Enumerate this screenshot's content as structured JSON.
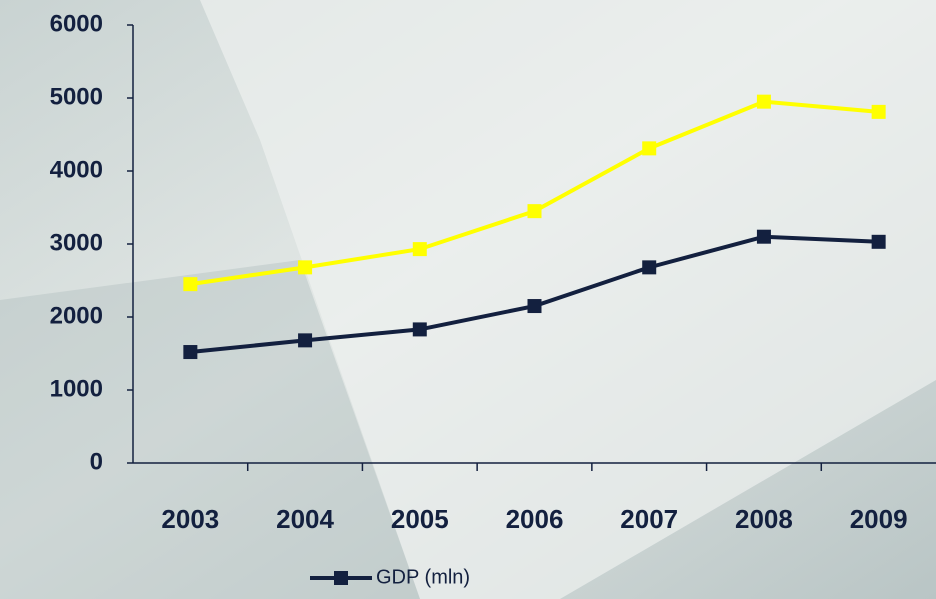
{
  "chart_data": {
    "type": "line",
    "categories": [
      "2003",
      "2004",
      "2005",
      "2006",
      "2007",
      "2008",
      "2009"
    ],
    "series": [
      {
        "name": "GDP (mln)",
        "color": "#13203f",
        "values": [
          1520,
          1680,
          1830,
          2150,
          2680,
          3100,
          3030
        ]
      },
      {
        "color": "#ffff00",
        "values": [
          2450,
          2680,
          2930,
          3450,
          4310,
          4950,
          4810
        ]
      }
    ],
    "ylim": [
      0,
      6000
    ],
    "yticks": [
      0,
      1000,
      2000,
      3000,
      4000,
      5000,
      6000
    ],
    "grid": false,
    "legend": "bottom"
  }
}
